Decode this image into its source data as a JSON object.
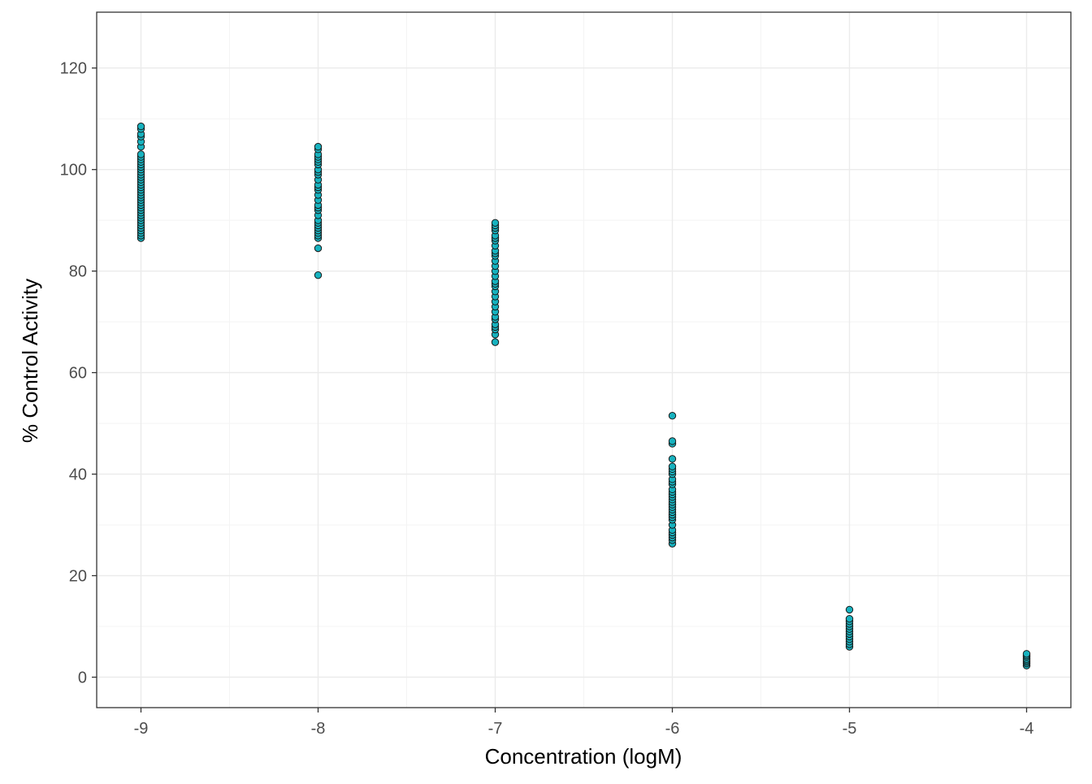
{
  "chart_data": {
    "type": "scatter",
    "title": "",
    "xlabel": "Concentration (logM)",
    "ylabel": "% Control Activity",
    "xlim": [
      -9.25,
      -3.75
    ],
    "ylim": [
      -6,
      131
    ],
    "x_ticks": [
      -9,
      -8,
      -7,
      -6,
      -5,
      -4
    ],
    "y_ticks": [
      0,
      20,
      40,
      60,
      80,
      100,
      120
    ],
    "x_tick_labels": [
      "-9",
      "-8",
      "-7",
      "-6",
      "-5",
      "-4"
    ],
    "y_tick_labels": [
      "0",
      "20",
      "40",
      "60",
      "80",
      "100",
      "120"
    ],
    "grid": true,
    "legend": "none",
    "colors": {
      "point_fill": "#17b2bf",
      "point_stroke": "#1a1a1a",
      "grid_major": "#ebebeb",
      "grid_minor": "#f4f4f4",
      "panel_border": "#333333"
    },
    "series": [
      {
        "x": -9,
        "y": [
          86.5,
          87.0,
          87.5,
          88.0,
          88.5,
          89.0,
          89.5,
          90.0,
          90.5,
          91.0,
          91.5,
          92.0,
          92.5,
          93.0,
          93.5,
          94.0,
          94.5,
          95.0,
          95.5,
          96.0,
          96.5,
          97.0,
          97.5,
          98.0,
          98.5,
          99.0,
          99.5,
          100.0,
          100.5,
          101.0,
          101.5,
          102.0,
          102.5,
          103.0,
          104.5,
          105.5,
          106.5,
          107.0,
          108.0,
          108.5
        ]
      },
      {
        "x": -8,
        "y": [
          79.2,
          84.5,
          86.5,
          87.0,
          87.5,
          88.0,
          88.5,
          89.0,
          89.5,
          90.0,
          91.0,
          92.0,
          92.5,
          93.0,
          94.0,
          95.0,
          96.0,
          96.5,
          97.0,
          98.0,
          99.0,
          99.5,
          100.0,
          101.0,
          101.5,
          102.0,
          102.5,
          103.0,
          104.0,
          104.5
        ]
      },
      {
        "x": -7,
        "y": [
          66.0,
          67.5,
          68.5,
          69.0,
          69.5,
          70.5,
          71.0,
          72.0,
          73.0,
          74.0,
          75.0,
          76.0,
          77.0,
          77.5,
          78.0,
          79.0,
          80.0,
          81.0,
          82.0,
          83.0,
          83.5,
          84.0,
          85.0,
          86.0,
          86.5,
          87.0,
          88.0,
          88.5,
          89.0,
          89.5
        ]
      },
      {
        "x": -6,
        "y": [
          26.3,
          27.0,
          27.5,
          28.0,
          28.5,
          29.0,
          30.0,
          31.0,
          31.5,
          32.0,
          32.5,
          33.0,
          33.5,
          34.0,
          34.5,
          35.0,
          35.5,
          36.0,
          36.5,
          37.0,
          38.0,
          38.5,
          39.0,
          40.0,
          40.5,
          41.0,
          41.5,
          43.0,
          46.0,
          46.5,
          51.5
        ]
      },
      {
        "x": -5,
        "y": [
          6.0,
          6.5,
          7.0,
          7.5,
          8.0,
          8.5,
          9.0,
          9.5,
          10.0,
          10.5,
          11.0,
          11.5,
          13.3
        ]
      },
      {
        "x": -4,
        "y": [
          2.3,
          2.7,
          3.0,
          3.3,
          3.6,
          4.0,
          4.3,
          4.6
        ]
      }
    ]
  }
}
